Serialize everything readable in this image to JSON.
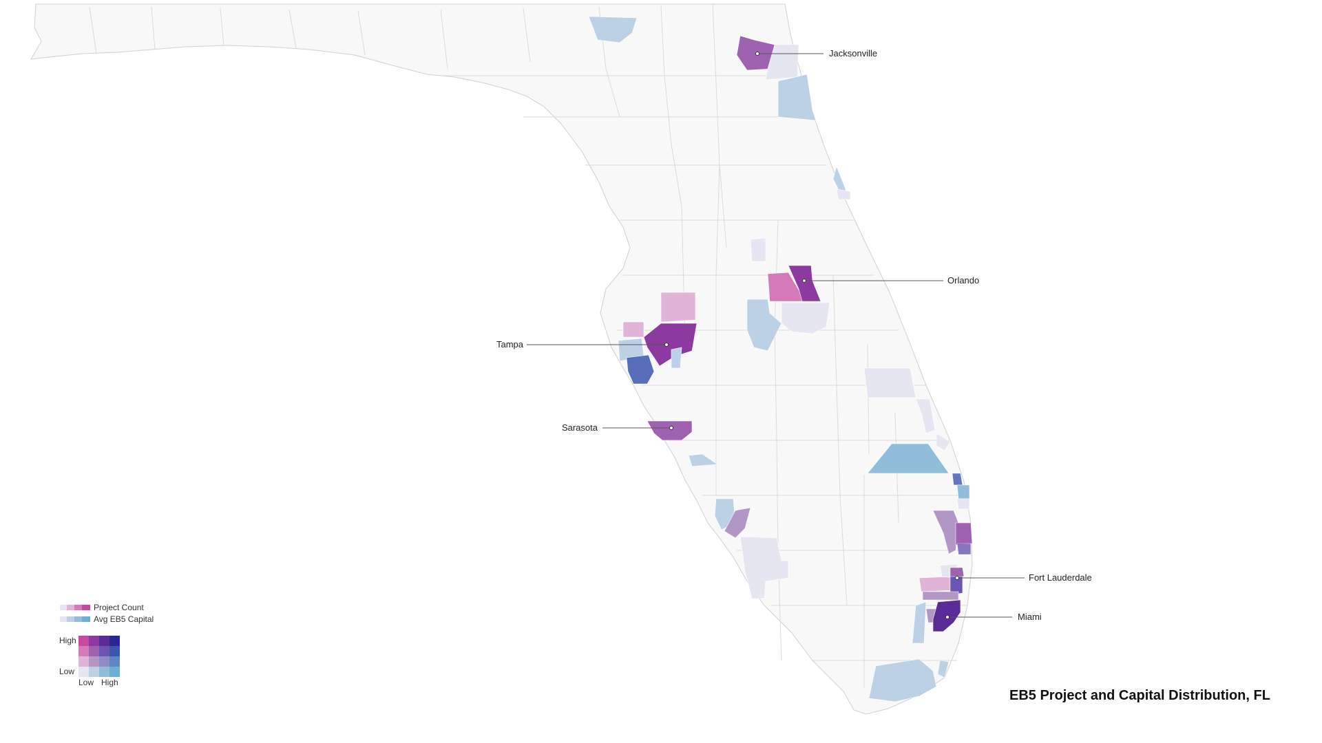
{
  "title": "EB5 Project and Capital Distribution, FL",
  "colors": {
    "land": "#f8f8f8",
    "border": "#cfcfcf",
    "grid": [
      [
        "#c84a9f",
        "#8d3aa0",
        "#5a2c98",
        "#2a2696"
      ],
      [
        "#d47ab8",
        "#9e62b0",
        "#6a56b0",
        "#3c56b0"
      ],
      [
        "#e0b4d6",
        "#b296c6",
        "#8e8cc6",
        "#5f86c4"
      ],
      [
        "#e6e6f2",
        "#bdd1e6",
        "#8fbdda",
        "#6aafd4"
      ]
    ]
  },
  "legend": {
    "project_count_label": "Project Count",
    "capital_label": "Avg EB5 Capital",
    "high_label": "High",
    "low_label": "Low",
    "x_low_label": "Low",
    "x_high_label": "High"
  },
  "cities": [
    {
      "name": "Jacksonville",
      "side": "right"
    },
    {
      "name": "Orlando",
      "side": "right"
    },
    {
      "name": "Tampa",
      "side": "left"
    },
    {
      "name": "Sarasota",
      "side": "left"
    },
    {
      "name": "Fort Lauderdale",
      "side": "right"
    },
    {
      "name": "Miami",
      "side": "right"
    }
  ]
}
